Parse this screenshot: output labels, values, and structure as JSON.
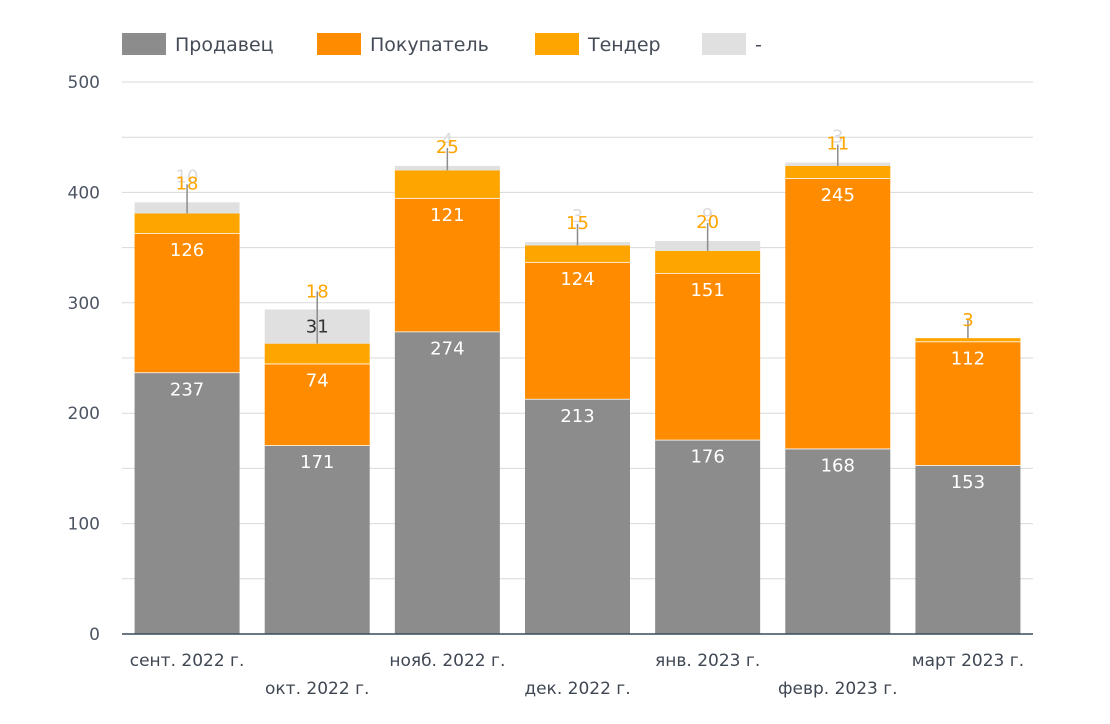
{
  "chart_data": {
    "type": "bar",
    "stacked": true,
    "categories": [
      "сент. 2022 г.",
      "окт. 2022 г.",
      "нояб. 2022 г.",
      "дек. 2022 г.",
      "янв. 2023 г.",
      "февр. 2023 г.",
      "март 2023 г."
    ],
    "series": [
      {
        "name": "Продавец",
        "color": "#8c8c8c",
        "values": [
          237,
          171,
          274,
          213,
          176,
          168,
          153
        ]
      },
      {
        "name": "Покупатель",
        "color": "#ff8c00",
        "values": [
          126,
          74,
          121,
          124,
          151,
          245,
          112
        ]
      },
      {
        "name": "Тендер",
        "color": "#ffa500",
        "values": [
          18,
          18,
          25,
          15,
          20,
          11,
          3
        ]
      },
      {
        "name": "-",
        "color": "#e0e0e0",
        "values": [
          10,
          31,
          4,
          3,
          9,
          3,
          0
        ]
      }
    ],
    "ylim": [
      0,
      500
    ],
    "yticks": [
      0,
      100,
      200,
      300,
      400,
      500
    ],
    "grid": true,
    "legend_position": "top-left",
    "title": "",
    "xlabel": "",
    "ylabel": ""
  }
}
